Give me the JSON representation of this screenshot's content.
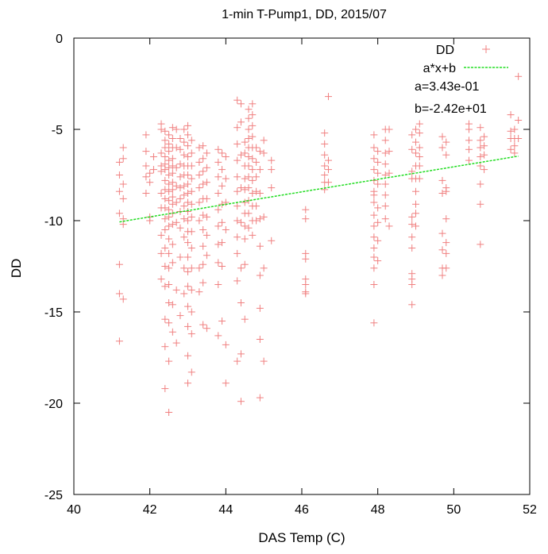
{
  "chart_data": {
    "type": "scatter",
    "title": "1-min T-Pump1, DD, 2015/07",
    "xlabel": "DAS Temp (C)",
    "ylabel": "DD",
    "xlim": [
      40,
      52
    ],
    "ylim": [
      -25,
      0
    ],
    "xticks": [
      "40",
      "42",
      "44",
      "46",
      "48",
      "50",
      "52"
    ],
    "yticks": [
      "0",
      "-5",
      "-10",
      "-15",
      "-20",
      "-25"
    ],
    "legend_position": "top-right",
    "grid": false,
    "fit": {
      "label": "a*x+b",
      "a": 0.343,
      "b": -24.2,
      "x_range": [
        41.2,
        51.7
      ],
      "a_text": "a=3.43e-01",
      "b_text": "b=-2.42e+01"
    },
    "series": [
      {
        "name": "DD",
        "marker": "+",
        "color": "#f08080",
        "x": [
          41.2,
          41.2,
          41.2,
          41.2,
          41.2,
          41.2,
          41.2,
          41.3,
          41.3,
          41.3,
          41.3,
          41.3,
          41.3,
          41.3,
          41.9,
          41.9,
          41.9,
          41.9,
          41.9,
          42.0,
          42.0,
          42.0,
          42.0,
          42.1,
          42.1,
          42.3,
          42.3,
          42.3,
          42.3,
          42.3,
          42.3,
          42.3,
          42.3,
          42.3,
          42.3,
          42.4,
          42.4,
          42.4,
          42.4,
          42.4,
          42.4,
          42.4,
          42.4,
          42.4,
          42.4,
          42.4,
          42.4,
          42.4,
          42.4,
          42.4,
          42.4,
          42.4,
          42.4,
          42.5,
          42.5,
          42.5,
          42.5,
          42.5,
          42.5,
          42.5,
          42.5,
          42.5,
          42.5,
          42.5,
          42.5,
          42.5,
          42.5,
          42.5,
          42.5,
          42.5,
          42.5,
          42.5,
          42.5,
          42.6,
          42.6,
          42.6,
          42.6,
          42.6,
          42.6,
          42.6,
          42.6,
          42.6,
          42.6,
          42.6,
          42.6,
          42.6,
          42.6,
          42.6,
          42.6,
          42.7,
          42.7,
          42.7,
          42.7,
          42.7,
          42.7,
          42.7,
          42.7,
          42.8,
          42.8,
          42.8,
          42.8,
          42.8,
          42.8,
          42.8,
          42.8,
          42.8,
          42.8,
          42.9,
          42.9,
          42.9,
          42.9,
          42.9,
          42.9,
          42.9,
          42.9,
          42.9,
          42.9,
          42.9,
          42.9,
          43.0,
          43.0,
          43.0,
          43.0,
          43.0,
          43.0,
          43.0,
          43.0,
          43.0,
          43.0,
          43.0,
          43.0,
          43.0,
          43.0,
          43.0,
          43.0,
          43.0,
          43.0,
          43.0,
          43.0,
          43.1,
          43.1,
          43.1,
          43.1,
          43.1,
          43.1,
          43.1,
          43.1,
          43.1,
          43.1,
          43.1,
          43.1,
          43.1,
          43.1,
          43.3,
          43.3,
          43.3,
          43.3,
          43.3,
          43.3,
          43.3,
          43.3,
          43.4,
          43.4,
          43.4,
          43.4,
          43.4,
          43.4,
          43.4,
          43.4,
          43.4,
          43.4,
          43.4,
          43.5,
          43.5,
          43.5,
          43.5,
          43.5,
          43.5,
          43.5,
          43.5,
          43.8,
          43.8,
          43.8,
          43.8,
          43.8,
          43.8,
          43.8,
          43.8,
          43.8,
          43.8,
          43.9,
          43.9,
          43.9,
          43.9,
          43.9,
          43.9,
          43.9,
          43.9,
          44.0,
          44.0,
          44.0,
          44.0,
          44.0,
          44.0,
          44.3,
          44.3,
          44.3,
          44.3,
          44.3,
          44.3,
          44.3,
          44.3,
          44.3,
          44.3,
          44.3,
          44.3,
          44.4,
          44.4,
          44.4,
          44.4,
          44.4,
          44.4,
          44.4,
          44.4,
          44.4,
          44.5,
          44.5,
          44.5,
          44.5,
          44.5,
          44.5,
          44.5,
          44.5,
          44.5,
          44.5,
          44.5,
          44.6,
          44.6,
          44.6,
          44.6,
          44.6,
          44.6,
          44.6,
          44.6,
          44.6,
          44.6,
          44.6,
          44.6,
          44.7,
          44.7,
          44.7,
          44.7,
          44.7,
          44.7,
          44.7,
          44.7,
          44.7,
          44.7,
          44.7,
          44.7,
          44.8,
          44.8,
          44.8,
          44.8,
          44.8,
          44.8,
          44.9,
          44.9,
          44.9,
          44.9,
          44.9,
          44.9,
          44.9,
          44.9,
          44.9,
          45.0,
          45.0,
          45.0,
          45.0,
          45.0,
          45.2,
          45.2,
          45.2,
          45.2,
          46.1,
          46.1,
          46.1,
          46.1,
          46.1,
          46.1,
          46.1,
          46.1,
          46.6,
          46.6,
          46.6,
          46.6,
          46.6,
          46.6,
          46.6,
          46.7,
          46.7,
          46.7,
          46.7,
          47.9,
          47.9,
          47.9,
          47.9,
          47.9,
          47.9,
          47.9,
          47.9,
          47.9,
          47.9,
          47.9,
          47.9,
          47.9,
          47.9,
          47.9,
          47.9,
          48.0,
          48.0,
          48.0,
          48.0,
          48.0,
          48.0,
          48.0,
          48.0,
          48.2,
          48.2,
          48.2,
          48.2,
          48.2,
          48.2,
          48.2,
          48.2,
          48.2,
          48.3,
          48.3,
          48.3,
          48.3,
          48.9,
          48.9,
          48.9,
          48.9,
          48.9,
          48.9,
          48.9,
          48.9,
          48.9,
          48.9,
          48.9,
          48.9,
          49.0,
          49.0,
          49.0,
          49.0,
          49.0,
          49.0,
          49.0,
          49.0,
          49.0,
          49.1,
          49.1,
          49.1,
          49.1,
          49.1,
          49.1,
          49.7,
          49.7,
          49.7,
          49.7,
          49.7,
          49.7,
          49.7,
          49.7,
          49.8,
          49.8,
          49.8,
          49.8,
          49.8,
          49.8,
          49.8,
          49.8,
          50.4,
          50.4,
          50.4,
          50.4,
          50.4,
          50.7,
          50.7,
          50.7,
          50.7,
          50.7,
          50.7,
          50.7,
          50.7,
          50.8,
          50.8,
          50.8,
          50.8,
          51.5,
          51.5,
          51.5,
          51.5,
          51.6,
          51.6,
          51.6,
          51.6,
          51.7,
          51.7,
          51.7
        ],
        "y": [
          -6.8,
          -7.5,
          -8.4,
          -9.6,
          -12.4,
          -14.0,
          -16.6,
          -6.0,
          -6.6,
          -8.0,
          -8.8,
          -9.9,
          -10.2,
          -14.3,
          -5.3,
          -6.2,
          -7.0,
          -7.6,
          -8.5,
          -7.4,
          -7.9,
          -9.8,
          -10.0,
          -6.5,
          -7.2,
          -4.7,
          -5.0,
          -6.3,
          -7.0,
          -7.3,
          -8.5,
          -9.3,
          -10.8,
          -11.8,
          -13.2,
          -5.1,
          -5.6,
          -6.0,
          -6.5,
          -6.9,
          -7.2,
          -7.8,
          -8.3,
          -8.8,
          -9.3,
          -9.9,
          -10.5,
          -11.5,
          -12.5,
          -13.6,
          -15.4,
          -16.9,
          -19.2,
          -5.3,
          -5.8,
          -6.2,
          -6.7,
          -7.1,
          -7.5,
          -8.0,
          -8.4,
          -8.9,
          -9.4,
          -9.8,
          -10.3,
          -11.0,
          -11.8,
          -12.6,
          -13.5,
          -14.5,
          -15.6,
          -17.7,
          -20.5,
          -4.9,
          -5.5,
          -6.0,
          -6.6,
          -7.0,
          -7.4,
          -7.9,
          -8.3,
          -8.7,
          -9.1,
          -9.6,
          -10.2,
          -11.3,
          -12.3,
          -14.6,
          -16.1,
          -5.0,
          -6.0,
          -7.1,
          -8.1,
          -9.0,
          -10.1,
          -13.8,
          -16.7,
          -5.5,
          -6.1,
          -6.9,
          -7.6,
          -8.2,
          -8.8,
          -9.5,
          -10.4,
          -12.0,
          -15.2,
          -5.0,
          -5.7,
          -6.4,
          -7.0,
          -7.5,
          -8.1,
          -8.6,
          -9.2,
          -9.9,
          -10.9,
          -12.6,
          -14.0,
          -4.8,
          -5.3,
          -5.9,
          -6.5,
          -7.0,
          -7.5,
          -8.0,
          -8.5,
          -9.0,
          -9.5,
          -10.0,
          -10.6,
          -11.2,
          -12.0,
          -12.8,
          -13.6,
          -14.7,
          -15.8,
          -17.4,
          -18.9,
          -5.6,
          -6.3,
          -7.0,
          -7.7,
          -8.4,
          -9.1,
          -9.8,
          -10.6,
          -11.5,
          -12.6,
          -13.8,
          -15.0,
          -16.2,
          -18.3,
          -6.0,
          -6.8,
          -7.5,
          -8.2,
          -9.0,
          -10.0,
          -12.6,
          -13.9,
          -5.9,
          -6.6,
          -7.3,
          -8.0,
          -8.8,
          -9.7,
          -10.5,
          -11.4,
          -12.4,
          -13.4,
          -15.7,
          -6.3,
          -7.1,
          -7.9,
          -8.8,
          -9.8,
          -10.8,
          -11.9,
          -15.9,
          -6.1,
          -6.8,
          -7.6,
          -8.5,
          -9.4,
          -10.3,
          -11.3,
          -12.3,
          -13.5,
          -16.3,
          -6.3,
          -7.2,
          -8.1,
          -9.1,
          -10.1,
          -11.2,
          -12.5,
          -15.5,
          -6.5,
          -7.7,
          -9.0,
          -10.5,
          -16.8,
          -18.9,
          -3.4,
          -4.9,
          -5.8,
          -6.7,
          -7.6,
          -8.4,
          -9.2,
          -10.0,
          -10.9,
          -11.8,
          -13.3,
          -17.7,
          -3.6,
          -4.6,
          -6.4,
          -8.2,
          -10.1,
          -12.6,
          -14.5,
          -17.3,
          -19.9,
          -5.7,
          -6.3,
          -7.0,
          -7.7,
          -8.3,
          -9.0,
          -9.6,
          -10.3,
          -11.0,
          -12.4,
          -15.4,
          -3.9,
          -4.4,
          -5.0,
          -5.5,
          -6.0,
          -6.5,
          -7.0,
          -7.6,
          -8.2,
          -8.9,
          -9.6,
          -10.4,
          -3.6,
          -4.2,
          -4.8,
          -5.4,
          -6.0,
          -6.6,
          -7.2,
          -7.8,
          -8.5,
          -9.2,
          -10.0,
          -10.8,
          -6.0,
          -6.8,
          -7.6,
          -8.4,
          -9.2,
          -10.0,
          -6.2,
          -7.2,
          -8.5,
          -9.9,
          -11.4,
          -13.0,
          -14.8,
          -16.5,
          -19.7,
          -5.6,
          -6.3,
          -9.8,
          -12.6,
          -17.7,
          -6.7,
          -7.2,
          -8.2,
          -11.1,
          -9.4,
          -9.9,
          -11.8,
          -12.1,
          -13.2,
          -13.5,
          -13.9,
          -14.0,
          -5.2,
          -5.8,
          -6.4,
          -7.0,
          -7.5,
          -7.9,
          -8.3,
          -3.2,
          -6.7,
          -7.2,
          -7.9,
          -5.3,
          -6.0,
          -6.6,
          -7.2,
          -7.8,
          -8.4,
          -9.0,
          -9.7,
          -10.3,
          -10.9,
          -11.5,
          -12.0,
          -12.6,
          -13.5,
          -15.6,
          -8.6,
          -6.2,
          -6.8,
          -7.4,
          -8.0,
          -9.3,
          -10.1,
          -11.1,
          -12.2,
          -5.0,
          -5.6,
          -6.3,
          -6.9,
          -7.5,
          -8.0,
          -8.6,
          -9.2,
          -9.9,
          -5.0,
          -6.2,
          -7.4,
          -10.3,
          -5.3,
          -6.1,
          -7.3,
          -7.7,
          -9.8,
          -10.2,
          -10.9,
          -11.5,
          -12.9,
          -13.2,
          -13.5,
          -14.6,
          -5.0,
          -5.7,
          -6.3,
          -7.0,
          -7.7,
          -8.4,
          -9.1,
          -9.6,
          -10.3,
          -4.7,
          -5.2,
          -6.0,
          -6.5,
          -7.0,
          -7.7,
          -5.4,
          -6.0,
          -7.8,
          -8.5,
          -10.7,
          -11.6,
          -12.6,
          -13.0,
          -5.7,
          -6.4,
          -8.2,
          -8.4,
          -9.9,
          -11.2,
          -11.8,
          -12.6,
          -4.7,
          -5.0,
          -5.6,
          -6.1,
          -6.7,
          -4.9,
          -5.6,
          -6.0,
          -6.5,
          -7.0,
          -8.0,
          -9.1,
          -11.3,
          -5.4,
          -5.9,
          -6.4,
          -7.2,
          -4.2,
          -5.1,
          -5.5,
          -6.1,
          -5.0,
          -5.5,
          -5.9,
          -6.3,
          -2.1,
          -4.5,
          -5.5
        ]
      }
    ]
  }
}
